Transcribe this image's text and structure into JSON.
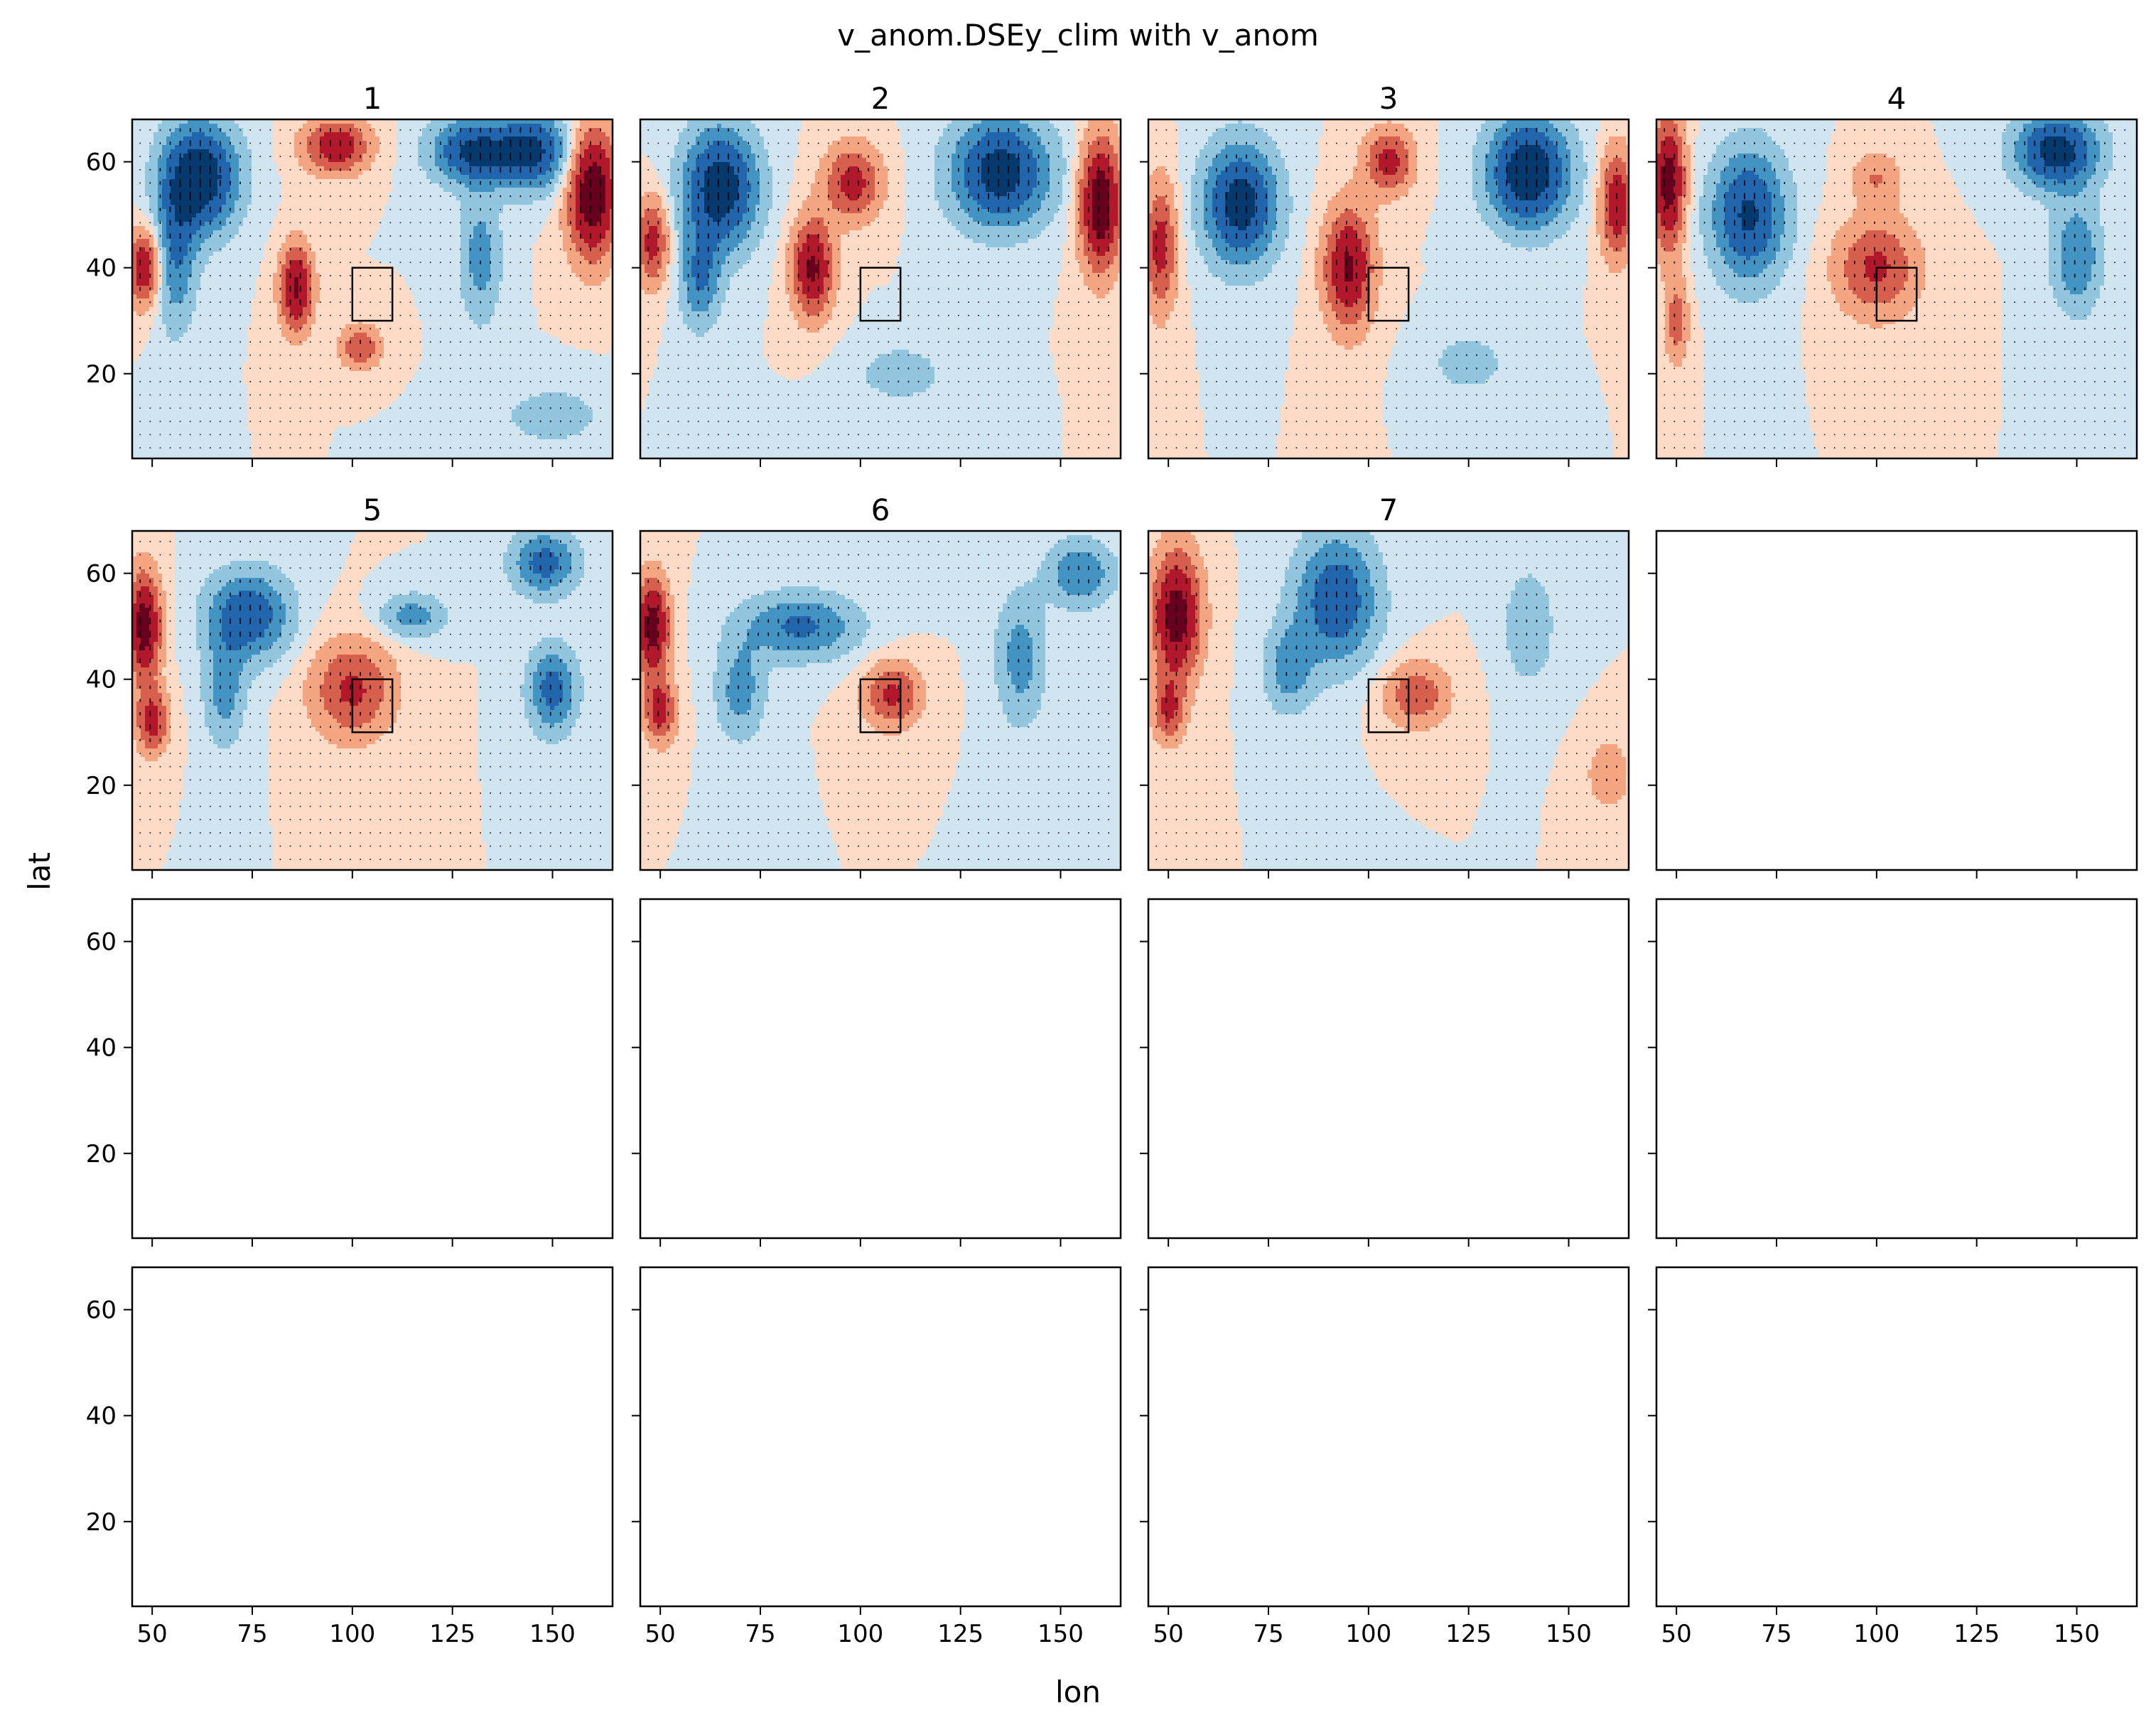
{
  "figure": {
    "suptitle": "v_anom.DSEy_clim with v_anom",
    "xlabel": "lon",
    "ylabel": "lat"
  },
  "colors": {
    "deep_blue": "#063a6e",
    "blue": "#2166ac",
    "mid_blue": "#4393c3",
    "light_blue": "#92c5de",
    "pale_blue": "#d1e5f0",
    "pale_red": "#fddbc7",
    "light_red": "#f4a582",
    "red": "#d6604d",
    "dark_red": "#b2182b",
    "deep_red": "#67001f",
    "frame": "#000000"
  },
  "chart_data": {
    "type": "heatmap",
    "layout": {
      "rows": 4,
      "cols": 4
    },
    "xlim": [
      45,
      165
    ],
    "ylim": [
      4,
      68
    ],
    "xticks": [
      50,
      75,
      100,
      125,
      150
    ],
    "yticks": [
      20,
      40,
      60
    ],
    "xtick_labels": [
      "50",
      "75",
      "100",
      "125",
      "150"
    ],
    "ytick_labels": [
      "20",
      "40",
      "60"
    ],
    "box_region": {
      "lon": [
        100,
        110
      ],
      "lat": [
        30,
        40
      ]
    },
    "panels": [
      {
        "title": "1",
        "filled": true,
        "blobs": [
          {
            "lon": 62,
            "lat": 57,
            "rlon": 9,
            "rlat": 10,
            "a": -1.0
          },
          {
            "lon": 56,
            "lat": 43,
            "rlon": 5,
            "rlat": 14,
            "a": -0.5
          },
          {
            "lon": 48,
            "lat": 40,
            "rlon": 4,
            "rlat": 7,
            "a": 0.7
          },
          {
            "lon": 86,
            "lat": 36,
            "rlon": 4,
            "rlat": 8,
            "a": 0.8
          },
          {
            "lon": 96,
            "lat": 63,
            "rlon": 8,
            "rlat": 5,
            "a": 0.7
          },
          {
            "lon": 102,
            "lat": 25,
            "rlon": 5,
            "rlat": 4,
            "a": 0.5
          },
          {
            "lon": 130,
            "lat": 62,
            "rlon": 10,
            "rlat": 6,
            "a": -0.8
          },
          {
            "lon": 145,
            "lat": 62,
            "rlon": 9,
            "rlat": 7,
            "a": -0.8
          },
          {
            "lon": 132,
            "lat": 42,
            "rlon": 5,
            "rlat": 12,
            "a": -0.4
          },
          {
            "lon": 160,
            "lat": 54,
            "rlon": 6,
            "rlat": 12,
            "a": 1.0
          },
          {
            "lon": 150,
            "lat": 12,
            "rlon": 14,
            "rlat": 6,
            "a": -0.2
          }
        ]
      },
      {
        "title": "2",
        "filled": true,
        "blobs": [
          {
            "lon": 65,
            "lat": 55,
            "rlon": 9,
            "rlat": 11,
            "a": -0.95
          },
          {
            "lon": 60,
            "lat": 38,
            "rlon": 5,
            "rlat": 9,
            "a": -0.5
          },
          {
            "lon": 48,
            "lat": 45,
            "rlon": 4,
            "rlat": 8,
            "a": 0.6
          },
          {
            "lon": 88,
            "lat": 40,
            "rlon": 5,
            "rlat": 9,
            "a": 0.8
          },
          {
            "lon": 98,
            "lat": 56,
            "rlon": 7,
            "rlat": 7,
            "a": 0.6
          },
          {
            "lon": 135,
            "lat": 58,
            "rlon": 12,
            "rlat": 10,
            "a": -0.9
          },
          {
            "lon": 160,
            "lat": 52,
            "rlon": 5,
            "rlat": 12,
            "a": 1.0
          },
          {
            "lon": 110,
            "lat": 20,
            "rlon": 12,
            "rlat": 6,
            "a": -0.2
          }
        ]
      },
      {
        "title": "3",
        "filled": true,
        "blobs": [
          {
            "lon": 68,
            "lat": 52,
            "rlon": 9,
            "rlat": 11,
            "a": -0.9
          },
          {
            "lon": 48,
            "lat": 44,
            "rlon": 4,
            "rlat": 12,
            "a": 0.6
          },
          {
            "lon": 95,
            "lat": 40,
            "rlon": 6,
            "rlat": 11,
            "a": 0.8
          },
          {
            "lon": 105,
            "lat": 60,
            "rlon": 6,
            "rlat": 6,
            "a": 0.6
          },
          {
            "lon": 140,
            "lat": 58,
            "rlon": 10,
            "rlat": 10,
            "a": -1.0
          },
          {
            "lon": 162,
            "lat": 52,
            "rlon": 4,
            "rlat": 10,
            "a": 0.7
          },
          {
            "lon": 125,
            "lat": 22,
            "rlon": 10,
            "rlat": 6,
            "a": -0.2
          }
        ]
      },
      {
        "title": "4",
        "filled": true,
        "blobs": [
          {
            "lon": 48,
            "lat": 56,
            "rlon": 4,
            "rlat": 12,
            "a": 0.9
          },
          {
            "lon": 68,
            "lat": 50,
            "rlon": 9,
            "rlat": 12,
            "a": -0.8
          },
          {
            "lon": 100,
            "lat": 40,
            "rlon": 10,
            "rlat": 9,
            "a": 0.55
          },
          {
            "lon": 100,
            "lat": 57,
            "rlon": 6,
            "rlat": 5,
            "a": 0.3
          },
          {
            "lon": 145,
            "lat": 62,
            "rlon": 10,
            "rlat": 7,
            "a": -0.9
          },
          {
            "lon": 150,
            "lat": 42,
            "rlon": 6,
            "rlat": 10,
            "a": -0.5
          },
          {
            "lon": 50,
            "lat": 30,
            "rlon": 3,
            "rlat": 8,
            "a": 0.4
          }
        ]
      },
      {
        "title": "5",
        "filled": true,
        "blobs": [
          {
            "lon": 48,
            "lat": 50,
            "rlon": 4,
            "rlat": 10,
            "a": 0.9
          },
          {
            "lon": 50,
            "lat": 32,
            "rlon": 4,
            "rlat": 6,
            "a": 0.6
          },
          {
            "lon": 74,
            "lat": 52,
            "rlon": 10,
            "rlat": 8,
            "a": -0.7
          },
          {
            "lon": 68,
            "lat": 38,
            "rlon": 5,
            "rlat": 10,
            "a": -0.4
          },
          {
            "lon": 100,
            "lat": 38,
            "rlon": 10,
            "rlat": 9,
            "a": 0.55
          },
          {
            "lon": 150,
            "lat": 38,
            "rlon": 6,
            "rlat": 8,
            "a": -0.6
          },
          {
            "lon": 148,
            "lat": 62,
            "rlon": 8,
            "rlat": 6,
            "a": -0.6
          },
          {
            "lon": 115,
            "lat": 52,
            "rlon": 8,
            "rlat": 4,
            "a": -0.4
          }
        ]
      },
      {
        "title": "6",
        "filled": true,
        "blobs": [
          {
            "lon": 48,
            "lat": 50,
            "rlon": 4,
            "rlat": 9,
            "a": 0.9
          },
          {
            "lon": 50,
            "lat": 34,
            "rlon": 4,
            "rlat": 6,
            "a": 0.6
          },
          {
            "lon": 85,
            "lat": 50,
            "rlon": 14,
            "rlat": 6,
            "a": -0.55
          },
          {
            "lon": 70,
            "lat": 38,
            "rlon": 6,
            "rlat": 9,
            "a": -0.4
          },
          {
            "lon": 108,
            "lat": 37,
            "rlon": 7,
            "rlat": 6,
            "a": 0.55
          },
          {
            "lon": 140,
            "lat": 44,
            "rlon": 6,
            "rlat": 12,
            "a": -0.4
          },
          {
            "lon": 155,
            "lat": 60,
            "rlon": 8,
            "rlat": 6,
            "a": -0.5
          }
        ]
      },
      {
        "title": "7",
        "filled": true,
        "blobs": [
          {
            "lon": 52,
            "lat": 52,
            "rlon": 6,
            "rlat": 12,
            "a": 0.9
          },
          {
            "lon": 50,
            "lat": 34,
            "rlon": 4,
            "rlat": 6,
            "a": 0.5
          },
          {
            "lon": 92,
            "lat": 55,
            "rlon": 10,
            "rlat": 12,
            "a": -0.7
          },
          {
            "lon": 80,
            "lat": 42,
            "rlon": 6,
            "rlat": 8,
            "a": -0.4
          },
          {
            "lon": 112,
            "lat": 37,
            "rlon": 8,
            "rlat": 6,
            "a": 0.45
          },
          {
            "lon": 140,
            "lat": 50,
            "rlon": 6,
            "rlat": 10,
            "a": -0.3
          },
          {
            "lon": 160,
            "lat": 22,
            "rlon": 5,
            "rlat": 6,
            "a": 0.3
          }
        ]
      },
      {
        "title": "",
        "filled": false
      },
      {
        "title": "",
        "filled": false
      },
      {
        "title": "",
        "filled": false
      },
      {
        "title": "",
        "filled": false
      },
      {
        "title": "",
        "filled": false
      },
      {
        "title": "",
        "filled": false
      },
      {
        "title": "",
        "filled": false
      },
      {
        "title": "",
        "filled": false
      },
      {
        "title": "",
        "filled": false
      }
    ]
  }
}
